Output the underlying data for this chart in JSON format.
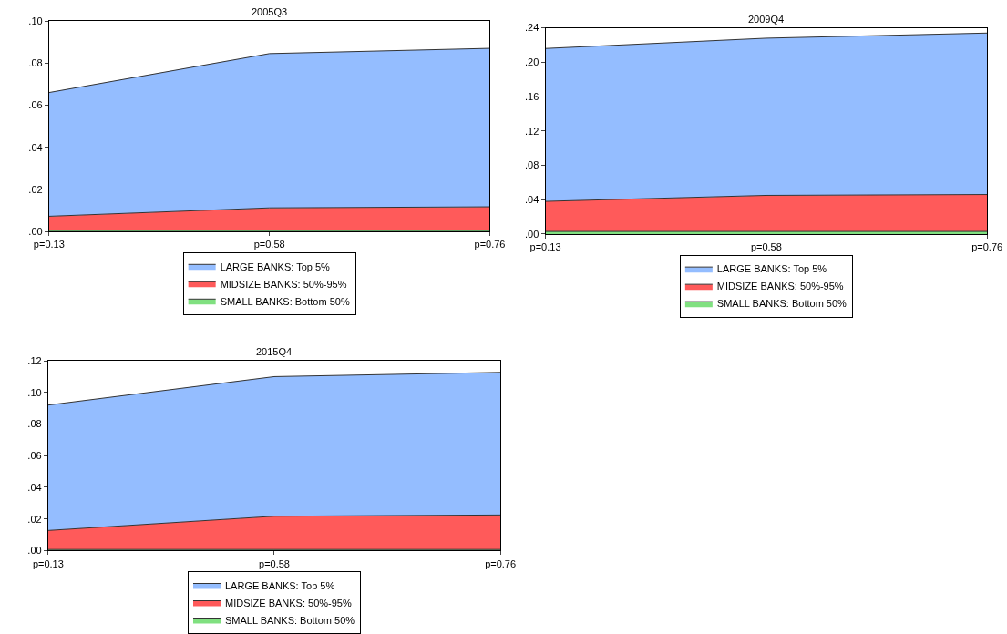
{
  "chart_data": [
    {
      "type": "area",
      "title": "2005Q3",
      "categories": [
        "p=0.13",
        "p=0.58",
        "p=0.76"
      ],
      "stacked": true,
      "legend": "bottom",
      "ylim": [
        0,
        0.1
      ],
      "yticks": [
        {
          "value": 0,
          "label": ".00"
        },
        {
          "value": 0.02,
          "label": ".02"
        },
        {
          "value": 0.04,
          "label": ".04"
        },
        {
          "value": 0.06,
          "label": ".06"
        },
        {
          "value": 0.08,
          "label": ".08"
        },
        {
          "value": 0.1,
          "label": ".10"
        }
      ],
      "series": [
        {
          "name": "SMALL BANKS: Bottom 50%",
          "color": "#80e080",
          "values": [
            0.0005,
            0.0005,
            0.0005
          ]
        },
        {
          "name": "MIDSIZE BANKS: 50%-95%",
          "color": "#ff5a5a",
          "values": [
            0.0067,
            0.0107,
            0.0112
          ]
        },
        {
          "name": "LARGE BANKS: Top 5%",
          "color": "#94bdff",
          "values": [
            0.0588,
            0.0733,
            0.0753
          ]
        }
      ]
    },
    {
      "type": "area",
      "title": "2009Q4",
      "categories": [
        "p=0.13",
        "p=0.58",
        "p=0.76"
      ],
      "stacked": true,
      "legend": "bottom",
      "ylim": [
        0,
        0.24
      ],
      "yticks": [
        {
          "value": 0,
          "label": ".00"
        },
        {
          "value": 0.04,
          "label": ".04"
        },
        {
          "value": 0.08,
          "label": ".08"
        },
        {
          "value": 0.12,
          "label": ".12"
        },
        {
          "value": 0.16,
          "label": ".16"
        },
        {
          "value": 0.2,
          "label": ".20"
        },
        {
          "value": 0.24,
          "label": ".24"
        }
      ],
      "series": [
        {
          "name": "SMALL BANKS: Bottom 50%",
          "color": "#80e080",
          "values": [
            0.003,
            0.003,
            0.003
          ]
        },
        {
          "name": "MIDSIZE BANKS: 50%-95%",
          "color": "#ff5a5a",
          "values": [
            0.035,
            0.042,
            0.043
          ]
        },
        {
          "name": "LARGE BANKS: Top 5%",
          "color": "#94bdff",
          "values": [
            0.178,
            0.183,
            0.188
          ]
        }
      ]
    },
    {
      "type": "area",
      "title": "2015Q4",
      "categories": [
        "p=0.13",
        "p=0.58",
        "p=0.76"
      ],
      "stacked": true,
      "legend": "bottom",
      "ylim": [
        0,
        0.12
      ],
      "yticks": [
        {
          "value": 0,
          "label": ".00"
        },
        {
          "value": 0.02,
          "label": ".02"
        },
        {
          "value": 0.04,
          "label": ".04"
        },
        {
          "value": 0.06,
          "label": ".06"
        },
        {
          "value": 0.08,
          "label": ".08"
        },
        {
          "value": 0.1,
          "label": ".10"
        },
        {
          "value": 0.12,
          "label": ".12"
        }
      ],
      "series": [
        {
          "name": "SMALL BANKS: Bottom 50%",
          "color": "#80e080",
          "values": [
            0.0007,
            0.0007,
            0.0007
          ]
        },
        {
          "name": "MIDSIZE BANKS: 50%-95%",
          "color": "#ff5a5a",
          "values": [
            0.012,
            0.021,
            0.0218
          ]
        },
        {
          "name": "LARGE BANKS: Top 5%",
          "color": "#94bdff",
          "values": [
            0.0793,
            0.0883,
            0.0902
          ]
        }
      ]
    }
  ]
}
